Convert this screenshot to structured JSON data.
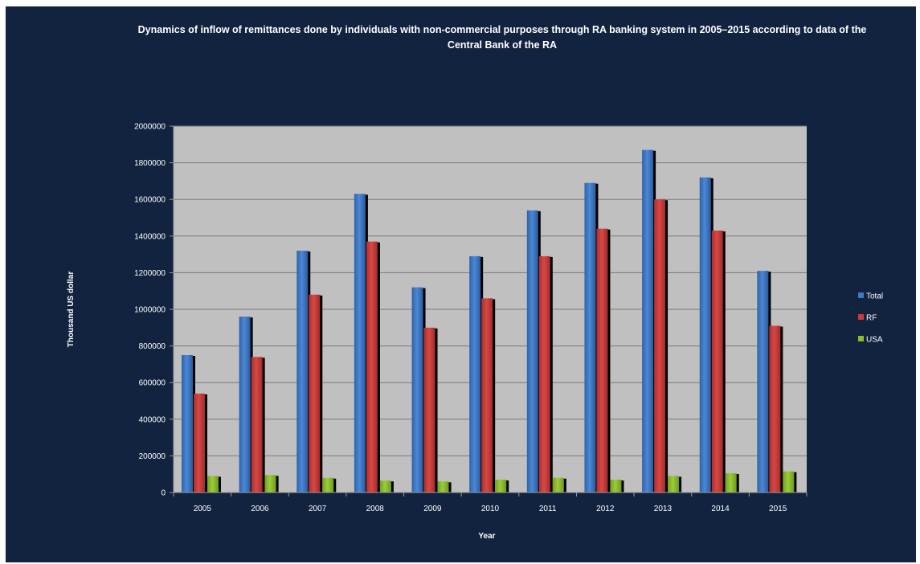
{
  "chart_data": {
    "type": "bar",
    "title": "Dynamics of inflow of remittances done by individuals with non-commercial purposes through RA banking system in 2005–2015 according to data of the Central Bank of the RA",
    "xlabel": "Year",
    "ylabel": "Thousand US dollar",
    "categories": [
      "2005",
      "2006",
      "2007",
      "2008",
      "2009",
      "2010",
      "2011",
      "2012",
      "2013",
      "2014",
      "2015"
    ],
    "ylim": [
      0,
      2000000
    ],
    "yticks": [
      0,
      200000,
      400000,
      600000,
      800000,
      1000000,
      1200000,
      1400000,
      1600000,
      1800000,
      2000000
    ],
    "grid": true,
    "legend_position": "right",
    "series": [
      {
        "name": "Total",
        "color": "#3c78c8",
        "values": [
          750000,
          960000,
          1320000,
          1630000,
          1120000,
          1290000,
          1540000,
          1690000,
          1870000,
          1720000,
          1210000
        ]
      },
      {
        "name": "RF",
        "color": "#c83c3a",
        "values": [
          540000,
          740000,
          1080000,
          1370000,
          900000,
          1060000,
          1290000,
          1440000,
          1600000,
          1430000,
          910000
        ]
      },
      {
        "name": "USA",
        "color": "#8cbc2c",
        "values": [
          90000,
          95000,
          80000,
          65000,
          60000,
          70000,
          80000,
          70000,
          90000,
          105000,
          115000
        ]
      }
    ]
  }
}
